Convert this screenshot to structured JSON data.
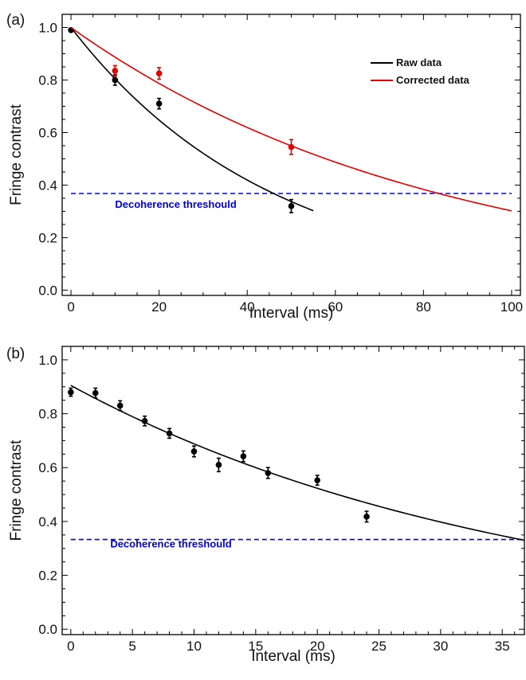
{
  "colors": {
    "raw": "#000000",
    "corrected": "#e00000",
    "threshold": "#0000e0",
    "axis": "#000000"
  },
  "chart_data": [
    {
      "panel": "(a)",
      "type": "scatter",
      "xlabel": "Interval (ms)",
      "ylabel": "Fringe contrast",
      "xlim": [
        -2,
        102
      ],
      "ylim": [
        -0.02,
        1.05
      ],
      "xticks": [
        0,
        20,
        40,
        60,
        80,
        100
      ],
      "yticks": [
        0.0,
        0.2,
        0.4,
        0.6,
        0.8,
        1.0
      ],
      "x_minor_step": 5,
      "y_minor_step": 0.05,
      "grid": false,
      "legend_position": "top-right",
      "series": [
        {
          "name": "Raw data",
          "color_key": "raw",
          "points": [
            {
              "x": 0,
              "y": 0.99,
              "err": 0.0
            },
            {
              "x": 10,
              "y": 0.8,
              "err": 0.02
            },
            {
              "x": 20,
              "y": 0.71,
              "err": 0.02
            },
            {
              "x": 50,
              "y": 0.32,
              "err": 0.025
            }
          ],
          "fit": {
            "model": "exponential",
            "amplitude": 1.0,
            "tau_ms": 46,
            "x_range": [
              0,
              55
            ]
          }
        },
        {
          "name": "Corrected data",
          "color_key": "corrected",
          "points": [
            {
              "x": 10,
              "y": 0.835,
              "err": 0.02
            },
            {
              "x": 20,
              "y": 0.825,
              "err": 0.022
            },
            {
              "x": 50,
              "y": 0.545,
              "err": 0.028
            }
          ],
          "fit": {
            "model": "exponential",
            "amplitude": 1.0,
            "tau_ms": 83.5,
            "x_range": [
              0,
              100
            ]
          }
        }
      ],
      "threshold": {
        "y": 0.368,
        "x_range": [
          0,
          100
        ],
        "label": "Decoherence threshould",
        "label_x": 10,
        "label_y": 0.325
      }
    },
    {
      "panel": "(b)",
      "type": "scatter",
      "xlabel": "Interval (ms)",
      "ylabel": "Fringe contrast",
      "xlim": [
        -0.7,
        36.8
      ],
      "ylim": [
        -0.02,
        1.05
      ],
      "xticks": [
        0,
        5,
        10,
        15,
        20,
        25,
        30,
        35
      ],
      "yticks": [
        0.0,
        0.2,
        0.4,
        0.6,
        0.8,
        1.0
      ],
      "x_minor_step": 1,
      "y_minor_step": 0.05,
      "grid": false,
      "series": [
        {
          "name": "",
          "color_key": "raw",
          "points": [
            {
              "x": 0,
              "y": 0.88,
              "err": 0.015
            },
            {
              "x": 2,
              "y": 0.877,
              "err": 0.018
            },
            {
              "x": 4,
              "y": 0.83,
              "err": 0.018
            },
            {
              "x": 6,
              "y": 0.773,
              "err": 0.018
            },
            {
              "x": 8,
              "y": 0.727,
              "err": 0.018
            },
            {
              "x": 10,
              "y": 0.66,
              "err": 0.02
            },
            {
              "x": 12,
              "y": 0.61,
              "err": 0.025
            },
            {
              "x": 14,
              "y": 0.642,
              "err": 0.02
            },
            {
              "x": 16,
              "y": 0.58,
              "err": 0.02
            },
            {
              "x": 20,
              "y": 0.553,
              "err": 0.018
            },
            {
              "x": 24,
              "y": 0.418,
              "err": 0.02
            }
          ],
          "fit": {
            "model": "exponential",
            "amplitude": 0.905,
            "tau_ms": 36.5,
            "x_range": [
              0,
              36.8
            ]
          }
        }
      ],
      "threshold": {
        "y": 0.333,
        "x_range": [
          0,
          36.8
        ],
        "label": "Decoherence threshould",
        "label_x": 3.2,
        "label_y": 0.315
      }
    }
  ]
}
